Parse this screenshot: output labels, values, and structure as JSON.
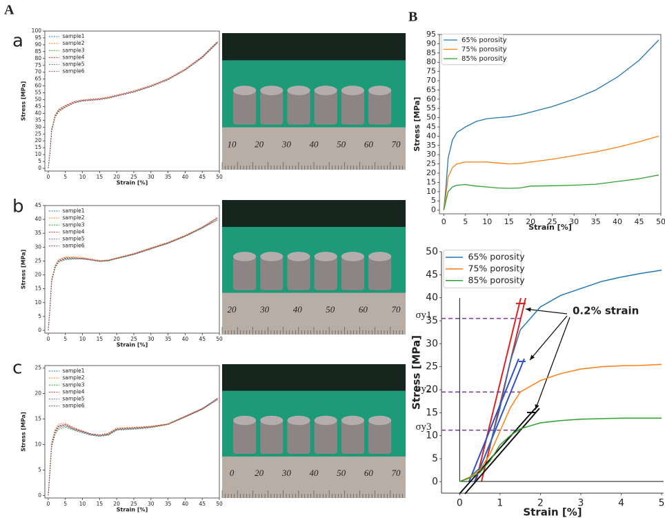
{
  "panel_labels": [
    "A",
    "B"
  ],
  "photos": [
    {
      "ruler_labels": [
        "10",
        "20",
        "30",
        "40",
        "50",
        "60",
        "70"
      ]
    },
    {
      "ruler_labels": [
        "20",
        "30",
        "40",
        "50",
        "60",
        "70"
      ]
    },
    {
      "ruler_labels": [
        "0",
        "20",
        "30",
        "40",
        "50",
        "60",
        "70"
      ]
    }
  ],
  "chart_data": [
    {
      "type": "line",
      "panel": "a",
      "x_label": "Strain [%]",
      "y_label": "Stress [MPa]",
      "legend": "upper left",
      "dashed": true,
      "x": [
        0,
        0.5,
        1,
        2,
        3,
        5,
        7.5,
        10,
        12.5,
        15,
        17.5,
        20,
        25,
        30,
        35,
        40,
        45,
        49.5
      ],
      "xlim": [
        -1,
        50
      ],
      "xticks": [
        0,
        5,
        10,
        15,
        20,
        25,
        30,
        35,
        40,
        45,
        50
      ],
      "ylim": [
        -2,
        100
      ],
      "yticks": [
        0,
        5,
        10,
        15,
        20,
        25,
        30,
        35,
        40,
        45,
        50,
        55,
        60,
        65,
        70,
        75,
        80,
        85,
        90,
        95,
        100
      ],
      "series": [
        {
          "name": "sample1",
          "color": "#1f77b4",
          "values": [
            0,
            12,
            28,
            38,
            42,
            45,
            48,
            49.5,
            50,
            50.5,
            51.5,
            53,
            56,
            60,
            65,
            72,
            81,
            92
          ]
        },
        {
          "name": "sample2",
          "color": "#ff7f0e",
          "values": [
            0,
            13,
            29,
            39,
            43,
            46,
            48.5,
            50,
            50.5,
            51,
            52,
            53.5,
            56.5,
            60.5,
            65.5,
            72.5,
            81.5,
            92.5
          ]
        },
        {
          "name": "sample3",
          "color": "#2ca02c",
          "values": [
            0,
            11,
            27,
            37,
            41,
            44.5,
            47.5,
            49,
            49.5,
            50,
            51,
            52.5,
            55.5,
            59.5,
            64.5,
            71.5,
            80.5,
            91.5
          ]
        },
        {
          "name": "sample4",
          "color": "#d62728",
          "values": [
            0,
            12,
            28,
            38.5,
            42.5,
            45.5,
            48.5,
            49.5,
            50,
            50.5,
            51.5,
            53,
            56,
            60,
            65,
            72,
            81,
            92
          ]
        },
        {
          "name": "sample5",
          "color": "#9467bd",
          "values": [
            0,
            12.5,
            28.5,
            38,
            42,
            45,
            48,
            49.5,
            50,
            50.5,
            51.5,
            53,
            56,
            60,
            65,
            72,
            81.5,
            92.5
          ]
        },
        {
          "name": "sample6",
          "color": "#8c564b",
          "values": [
            0,
            11.5,
            27.5,
            37.5,
            41.5,
            44.5,
            47.5,
            49,
            49.5,
            50,
            51,
            52.5,
            55.5,
            59.5,
            64.5,
            71.5,
            80.5,
            91.5
          ]
        }
      ]
    },
    {
      "type": "line",
      "panel": "b",
      "x_label": "Strain [%]",
      "y_label": "Stress [MPa]",
      "legend": "upper left",
      "dashed": true,
      "x": [
        0,
        0.5,
        1,
        2,
        3,
        5,
        7.5,
        10,
        12.5,
        15,
        17.5,
        20,
        25,
        30,
        35,
        40,
        45,
        49.5
      ],
      "xlim": [
        -1,
        50
      ],
      "xticks": [
        0,
        5,
        10,
        15,
        20,
        25,
        30,
        35,
        40,
        45,
        50
      ],
      "ylim": [
        -1,
        45
      ],
      "yticks": [
        0,
        5,
        10,
        15,
        20,
        25,
        30,
        35,
        40,
        45
      ],
      "series": [
        {
          "name": "sample1",
          "color": "#1f77b4",
          "values": [
            0,
            8,
            18,
            23,
            25,
            26,
            26,
            26,
            25.5,
            25,
            25.2,
            26,
            27.5,
            29.5,
            31.5,
            34,
            37,
            40
          ]
        },
        {
          "name": "sample2",
          "color": "#ff7f0e",
          "values": [
            0,
            8.5,
            18.5,
            23.5,
            25.5,
            26.5,
            26.5,
            26.3,
            25.8,
            25.2,
            25.4,
            26.2,
            27.8,
            29.8,
            31.8,
            34.3,
            37.3,
            40.5
          ]
        },
        {
          "name": "sample3",
          "color": "#2ca02c",
          "values": [
            0,
            7.5,
            17.5,
            22.5,
            24.5,
            25.5,
            25.7,
            25.7,
            25.3,
            24.8,
            25,
            25.8,
            27.3,
            29.3,
            31.3,
            33.8,
            36.8,
            39.8
          ]
        },
        {
          "name": "sample4",
          "color": "#d62728",
          "values": [
            0,
            8,
            18,
            23,
            25.2,
            26.2,
            26.2,
            26,
            25.5,
            25,
            25.2,
            26,
            27.5,
            29.5,
            31.5,
            34,
            37,
            40.5
          ]
        },
        {
          "name": "sample5",
          "color": "#9467bd",
          "values": [
            0,
            8.2,
            18.2,
            23.2,
            25,
            25.8,
            25.9,
            25.8,
            25.4,
            25,
            25.1,
            25.9,
            27.4,
            29.4,
            31.4,
            33.9,
            36.9,
            40
          ]
        },
        {
          "name": "sample6",
          "color": "#8c564b",
          "values": [
            0,
            7.8,
            17.8,
            22.8,
            24.8,
            25.7,
            25.8,
            25.8,
            25.4,
            24.9,
            25.1,
            25.9,
            27.6,
            29.6,
            31.6,
            34.1,
            37.2,
            40.8
          ]
        }
      ]
    },
    {
      "type": "line",
      "panel": "c",
      "x_label": "Strain [%]",
      "y_label": "Stress [MPa]",
      "legend": "upper left",
      "dashed": true,
      "x": [
        0,
        0.5,
        1,
        2,
        3,
        5,
        7.5,
        10,
        12.5,
        15,
        17.5,
        20,
        25,
        30,
        35,
        40,
        45,
        49.5
      ],
      "xlim": [
        -1,
        50
      ],
      "xticks": [
        0,
        5,
        10,
        15,
        20,
        25,
        30,
        35,
        40,
        45,
        50
      ],
      "ylim": [
        -0.5,
        25.5
      ],
      "yticks": [
        0,
        5,
        10,
        15,
        20,
        25
      ],
      "series": [
        {
          "name": "sample1",
          "color": "#1f77b4",
          "values": [
            0,
            5,
            10,
            12.5,
            13.5,
            13.8,
            13,
            12.5,
            12,
            11.8,
            12,
            13,
            13.2,
            13.5,
            14,
            15.5,
            17,
            19
          ]
        },
        {
          "name": "sample2",
          "color": "#ff7f0e",
          "values": [
            0,
            5.5,
            10.5,
            13,
            14,
            14.2,
            13.3,
            12.7,
            12.1,
            11.9,
            12.2,
            13.3,
            13.4,
            13.6,
            14.1,
            15.6,
            17.1,
            19
          ]
        },
        {
          "name": "sample3",
          "color": "#2ca02c",
          "values": [
            0,
            4.5,
            9.5,
            12,
            13,
            13.4,
            12.8,
            12.3,
            11.8,
            11.6,
            11.8,
            12.8,
            13,
            13.3,
            13.9,
            15.4,
            16.9,
            18.9
          ]
        },
        {
          "name": "sample4",
          "color": "#d62728",
          "values": [
            0,
            5,
            10,
            12.6,
            13.6,
            13.9,
            13.1,
            12.6,
            12.1,
            11.9,
            12.1,
            13.1,
            13.3,
            13.5,
            14,
            15.5,
            17,
            19.1
          ]
        },
        {
          "name": "sample5",
          "color": "#9467bd",
          "values": [
            0,
            5.2,
            10.2,
            12.7,
            13.7,
            14,
            13.2,
            12.6,
            12,
            11.7,
            12,
            13,
            13.1,
            13.4,
            14,
            15.5,
            17.1,
            19.1
          ]
        },
        {
          "name": "sample6",
          "color": "#8c564b",
          "values": [
            0,
            4.8,
            9.8,
            12.3,
            13.3,
            13.6,
            12.9,
            12.4,
            11.9,
            11.7,
            11.9,
            12.9,
            13.1,
            13.4,
            14,
            15.4,
            16.9,
            18.8
          ]
        }
      ]
    },
    {
      "type": "line",
      "x_label": "Strain [%]",
      "y_label": "Stress [MPa]",
      "legend": "upper left",
      "x": [
        0,
        0.5,
        1,
        2,
        3,
        5,
        7.5,
        10,
        12.5,
        15,
        17.5,
        20,
        25,
        30,
        35,
        40,
        45,
        49.5
      ],
      "xlim": [
        -1,
        50
      ],
      "xticks": [
        0,
        5,
        10,
        15,
        20,
        25,
        30,
        35,
        40,
        45,
        50
      ],
      "ylim": [
        -2,
        95
      ],
      "yticks": [
        0,
        5,
        10,
        15,
        20,
        25,
        30,
        35,
        40,
        45,
        50,
        55,
        60,
        65,
        70,
        75,
        80,
        85,
        90,
        95
      ],
      "series": [
        {
          "name": "65% porosity",
          "color": "#1f77b4",
          "values": [
            0,
            12,
            28,
            38,
            42,
            45,
            48,
            49.5,
            50,
            50.5,
            51.5,
            53,
            56,
            60,
            65,
            72,
            81,
            92
          ]
        },
        {
          "name": "75% porosity",
          "color": "#ff7f0e",
          "values": [
            0,
            8,
            18,
            23,
            25,
            26,
            26,
            26,
            25.5,
            25,
            25.2,
            26,
            27.5,
            29.5,
            31.5,
            34,
            37,
            40
          ]
        },
        {
          "name": "85% porosity",
          "color": "#2ca02c",
          "values": [
            0,
            5,
            10,
            12.5,
            13.5,
            13.8,
            13,
            12.5,
            12,
            11.8,
            12,
            13,
            13.2,
            13.5,
            14,
            15.5,
            17,
            19
          ]
        }
      ]
    },
    {
      "type": "line",
      "x_label": "Strain [%]",
      "y_label": "Stress [MPa]",
      "legend": "upper left",
      "x": [
        0,
        0.25,
        0.5,
        0.75,
        1,
        1.25,
        1.5,
        2,
        2.5,
        3,
        3.5,
        4,
        4.5,
        5
      ],
      "xlim": [
        -0.45,
        5.05
      ],
      "xticks": [
        0,
        1,
        2,
        3,
        4,
        5
      ],
      "ylim": [
        -2.5,
        50
      ],
      "yticks": [
        0,
        5,
        10,
        15,
        20,
        25,
        30,
        35,
        40,
        45,
        50
      ],
      "series": [
        {
          "name": "65% porosity",
          "color": "#1f77b4",
          "values": [
            0,
            1,
            3,
            8,
            16,
            26,
            33,
            38,
            40.5,
            42,
            43.5,
            44.5,
            45.3,
            46
          ]
        },
        {
          "name": "75% porosity",
          "color": "#ff7f0e",
          "values": [
            0,
            1,
            2.5,
            6,
            11,
            16,
            19.5,
            22,
            23.5,
            24.5,
            25,
            25.2,
            25.3,
            25.5
          ]
        },
        {
          "name": "85% porosity",
          "color": "#2ca02c",
          "values": [
            0,
            0.8,
            2,
            4.5,
            8,
            10,
            11.5,
            12.8,
            13.3,
            13.6,
            13.7,
            13.8,
            13.8,
            13.8
          ]
        }
      ],
      "yield_levels": [
        {
          "label": "σy1",
          "value": 35.5
        },
        {
          "label": "σy2",
          "value": 19.5
        },
        {
          "label": "σy3",
          "value": 11.2
        }
      ],
      "annotations": [
        "0.2% strain"
      ]
    }
  ]
}
